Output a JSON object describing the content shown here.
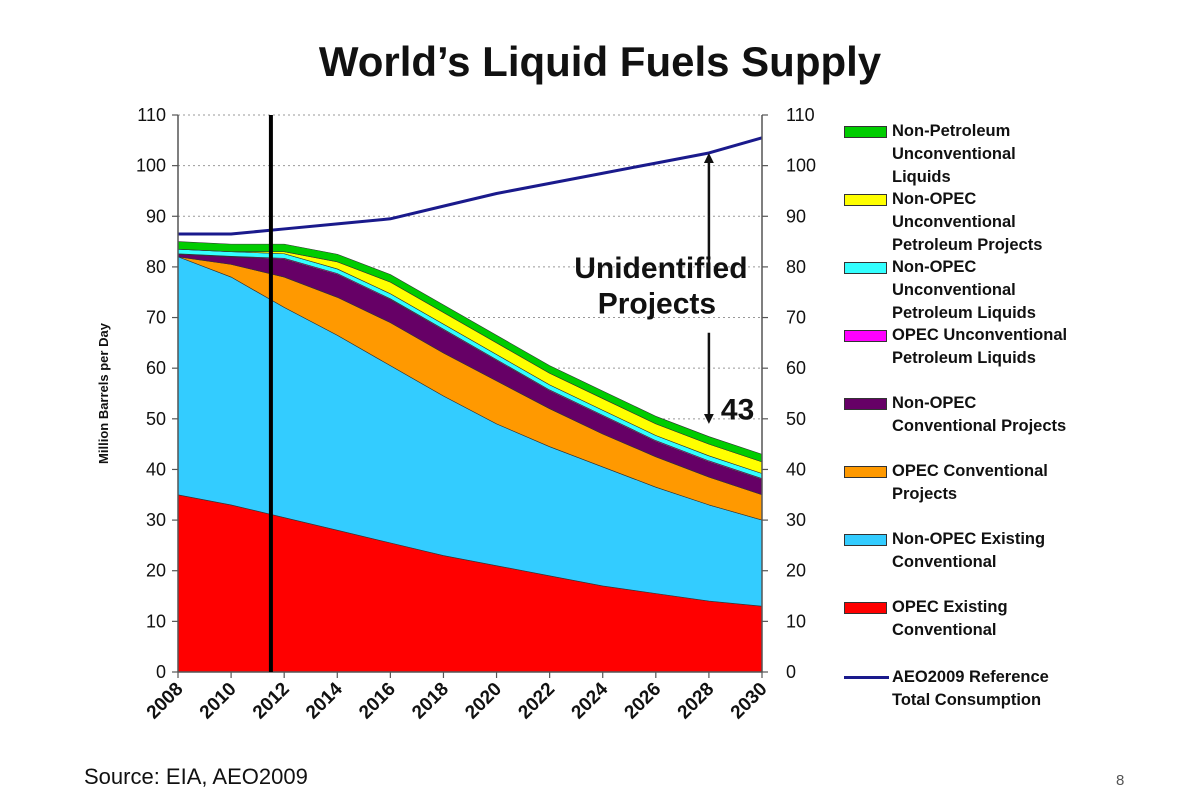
{
  "slide": {
    "title": "World’s Liquid Fuels Supply",
    "source": "Source: EIA, AEO2009",
    "page_number": "8"
  },
  "chart_data": {
    "type": "area",
    "title": "World’s Liquid Fuels Supply",
    "ylabel": "Million Barrels per Day",
    "xlabel": "",
    "ylim": [
      0,
      110
    ],
    "yticks": [
      0,
      10,
      20,
      30,
      40,
      50,
      60,
      70,
      80,
      90,
      100,
      110
    ],
    "ytick_labels": [
      "0",
      "10",
      "20",
      "30",
      "40",
      "50",
      "60",
      "70",
      "80",
      "90",
      "100",
      "110"
    ],
    "xlim": [
      2008,
      2030
    ],
    "xticks": [
      2008,
      2010,
      2012,
      2014,
      2016,
      2018,
      2020,
      2022,
      2024,
      2026,
      2028,
      2030
    ],
    "xtick_labels": [
      "2008",
      "2010",
      "2012",
      "2014",
      "2016",
      "2018",
      "2020",
      "2022",
      "2024",
      "2026",
      "2028",
      "2030"
    ],
    "stacked": true,
    "grid": "horizontal dotted",
    "secondary_y_axis": true,
    "legend_position": "right",
    "x": [
      2008,
      2010,
      2012,
      2014,
      2016,
      2018,
      2020,
      2022,
      2024,
      2026,
      2028,
      2030
    ],
    "series": [
      {
        "name": "OPEC Existing Conventional",
        "color": "#ff0000",
        "values": [
          35,
          33,
          30.5,
          28,
          25.5,
          23,
          21,
          19,
          17,
          15.5,
          14,
          13
        ]
      },
      {
        "name": "Non-OPEC Existing Conventional",
        "color": "#33ccff",
        "values": [
          47,
          45,
          41.5,
          38.5,
          35,
          31.5,
          28,
          25.5,
          23.5,
          21,
          19,
          17
        ]
      },
      {
        "name": "OPEC Conventional Projects",
        "color": "#ff9900",
        "values": [
          0,
          2.5,
          6,
          7.5,
          8.5,
          8.5,
          8.5,
          7.5,
          6.5,
          6,
          5.5,
          5
        ]
      },
      {
        "name": "Non-OPEC Conventional Projects",
        "color": "#660066",
        "values": [
          0.5,
          1.5,
          3.5,
          4.5,
          4.5,
          4.5,
          4,
          3.5,
          3.5,
          3,
          3,
          3
        ]
      },
      {
        "name": "OPEC Unconventional Petroleum Liquids",
        "color": "#ff00ff",
        "values": [
          0.1,
          0.1,
          0.2,
          0.2,
          0.2,
          0.2,
          0.2,
          0.2,
          0.2,
          0.2,
          0.2,
          0.2
        ]
      },
      {
        "name": "Non-OPEC Unconventional Petroleum Liquids",
        "color": "#33ffff",
        "values": [
          0.9,
          0.9,
          0.9,
          0.9,
          1,
          1,
          1,
          1,
          1,
          1,
          1,
          1
        ]
      },
      {
        "name": "Non-OPEC Unconventional Petroleum Projects",
        "color": "#ffff00",
        "values": [
          0,
          0,
          0.4,
          1.4,
          2.3,
          2.3,
          2.3,
          2.3,
          2.3,
          2.3,
          2.3,
          2.3
        ]
      },
      {
        "name": "Non-Petroleum Unconventional Liquids",
        "color": "#00cc00",
        "values": [
          1.5,
          1.5,
          1.5,
          1.5,
          1.5,
          1.5,
          1.5,
          1.5,
          1.5,
          1.5,
          1.5,
          1.5
        ]
      }
    ],
    "reference_line": {
      "name": "AEO2009 Reference Total Consumption",
      "color": "#1a1a8c",
      "values": [
        86.5,
        86.5,
        87.5,
        88.5,
        89.5,
        92,
        94.5,
        96.5,
        98.5,
        100.5,
        102.5,
        105.5
      ]
    },
    "vertical_marker": {
      "x": 2011.5,
      "color": "#000000"
    },
    "annotations": {
      "unidentified_label": [
        "Unidentified",
        "Projects"
      ],
      "arrow_x": 2028,
      "arrow_up_from": 79,
      "arrow_up_to": 101.5,
      "arrow_down_from": 67,
      "arrow_down_to": 50,
      "gap_value": "43",
      "gap_value_y": 52
    }
  },
  "legend": {
    "items": [
      {
        "lines": [
          "Non-Petroleum",
          "Unconventional",
          "Liquids"
        ],
        "color": "#00cc00",
        "kind": "area"
      },
      {
        "lines": [
          "Non-OPEC",
          "Unconventional",
          "Petroleum Projects"
        ],
        "color": "#ffff00",
        "kind": "area"
      },
      {
        "lines": [
          "Non-OPEC",
          "Unconventional",
          "Petroleum Liquids"
        ],
        "color": "#33ffff",
        "kind": "area"
      },
      {
        "lines": [
          "OPEC Unconventional",
          "Petroleum Liquids"
        ],
        "color": "#ff00ff",
        "kind": "area"
      },
      {
        "lines": [
          "Non-OPEC",
          "Conventional Projects"
        ],
        "color": "#660066",
        "kind": "area"
      },
      {
        "lines": [
          "OPEC Conventional",
          "Projects"
        ],
        "color": "#ff9900",
        "kind": "area"
      },
      {
        "lines": [
          "Non-OPEC Existing",
          "Conventional"
        ],
        "color": "#33ccff",
        "kind": "area"
      },
      {
        "lines": [
          "OPEC Existing",
          "Conventional"
        ],
        "color": "#ff0000",
        "kind": "area"
      },
      {
        "lines": [
          "AEO2009 Reference",
          "Total Consumption"
        ],
        "color": "#1a1a8c",
        "kind": "line"
      }
    ]
  }
}
